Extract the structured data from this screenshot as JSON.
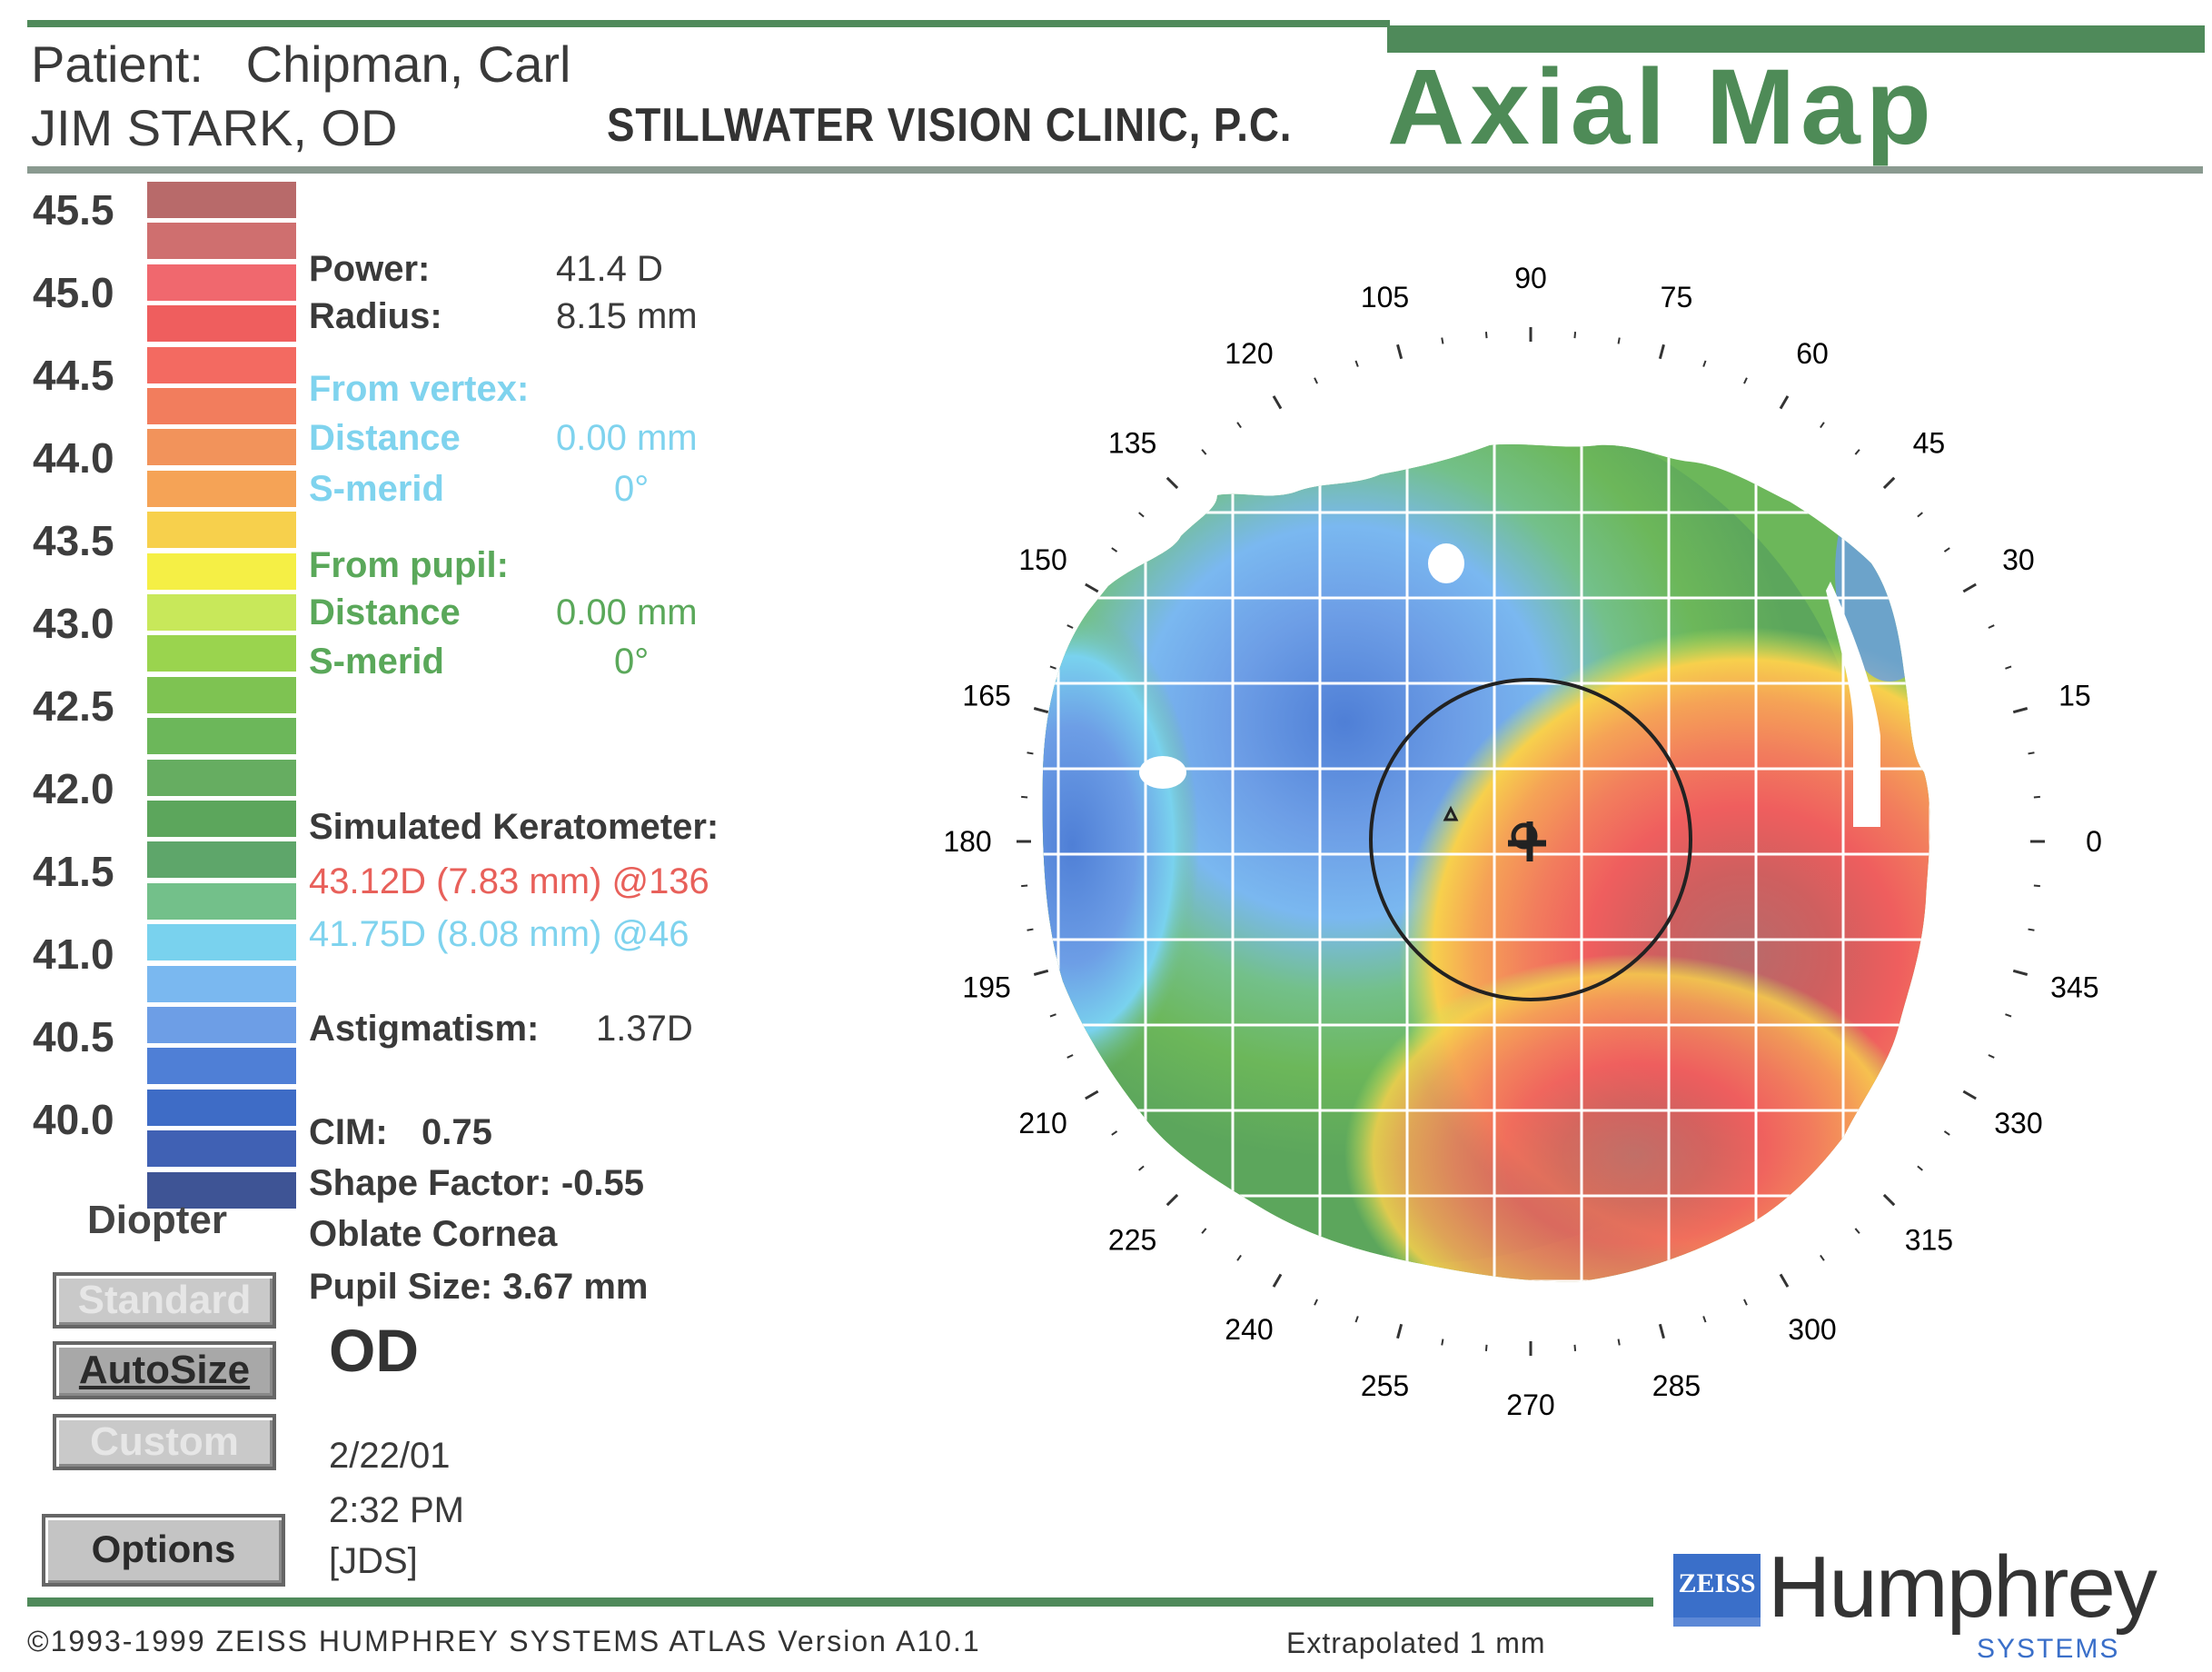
{
  "header": {
    "patient_label": "Patient:",
    "patient_name": "Chipman, Carl",
    "doctor": "JIM STARK, OD",
    "clinic": "STILLWATER VISION CLINIC, P.C.",
    "map_title": "Axial Map"
  },
  "scale": {
    "labels": [
      "45.5",
      "45.0",
      "44.5",
      "44.0",
      "43.5",
      "43.0",
      "42.5",
      "42.0",
      "41.5",
      "41.0",
      "40.5",
      "40.0"
    ],
    "colors": [
      "#b86a6a",
      "#cf6f6f",
      "#f0686e",
      "#ef5e5e",
      "#f36a61",
      "#f27d5d",
      "#f2935b",
      "#f5a356",
      "#f7d04c",
      "#f5ef45",
      "#c8e85a",
      "#9ad44e",
      "#7ec352",
      "#6cb75a",
      "#66ad61",
      "#5ca65c",
      "#5ea66a",
      "#73c08a",
      "#79d2ee",
      "#7ab8f0",
      "#6d9ee6",
      "#4f7fd6",
      "#3e6cc6",
      "#4061b4",
      "#3e5495"
    ],
    "unit_label": "Diopter"
  },
  "buttons": {
    "standard": "Standard",
    "autosize": "AutoSize",
    "custom": "Custom",
    "options": "Options"
  },
  "info": {
    "power_label": "Power:",
    "power_value": "41.4 D",
    "radius_label": "Radius:",
    "radius_value": "8.15 mm",
    "from_vertex_label": "From vertex:",
    "vertex_distance_label": "Distance",
    "vertex_distance_value": "0.00 mm",
    "vertex_smerid_label": "S-merid",
    "vertex_smerid_value": "0°",
    "from_pupil_label": "From pupil:",
    "pupil_distance_label": "Distance",
    "pupil_distance_value": "0.00 mm",
    "pupil_smerid_label": "S-merid",
    "pupil_smerid_value": "0°",
    "simk_label": "Simulated Keratometer:",
    "simk_steep": "43.12D (7.83 mm) @136",
    "simk_flat": "41.75D (8.08 mm) @46",
    "astig_label": "Astigmatism:",
    "astig_value": "1.37D",
    "cim_label": "CIM:",
    "cim_value": "0.75",
    "shape_factor": "Shape Factor: -0.55",
    "cornea_type": "Oblate Cornea",
    "pupil_size": "Pupil Size: 3.67 mm",
    "eye": "OD",
    "date": "2/22/01",
    "time": "2:32 PM",
    "operator": "[JDS]"
  },
  "map": {
    "angles": [
      "0",
      "15",
      "30",
      "45",
      "60",
      "75",
      "90",
      "105",
      "120",
      "135",
      "150",
      "165",
      "180",
      "195",
      "210",
      "225",
      "240",
      "255",
      "270",
      "285",
      "300",
      "315",
      "330",
      "345"
    ]
  },
  "footer": {
    "copyright": "©1993-1999 ZEISS HUMPHREY SYSTEMS ATLAS  Version A10.1",
    "extrapolated": "Extrapolated 1 mm",
    "logo_zeiss": "ZEISS",
    "logo_humphrey": "Humphrey",
    "logo_systems": "SYSTEMS"
  },
  "colors": {
    "accent_green": "#4f8a5a",
    "vertex_cyan": "#7fd3ee",
    "pupil_green": "#5aa85a",
    "steep_red": "#e8605a",
    "flat_cyan": "#7fd3ee",
    "logo_blue": "#3a6fc9"
  }
}
